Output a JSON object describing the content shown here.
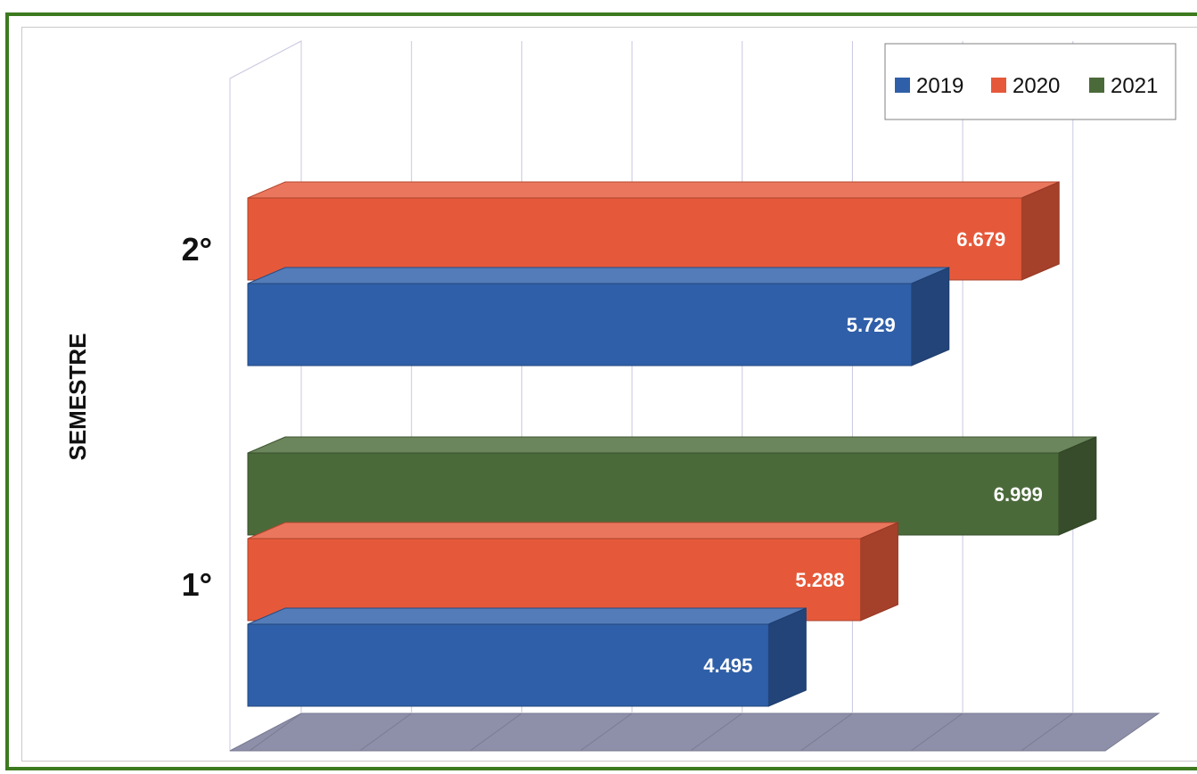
{
  "chart_data": {
    "type": "bar",
    "orientation": "horizontal",
    "style": "3d",
    "categories": [
      "1°",
      "2°"
    ],
    "ylabel": "SEMESTRE",
    "xlabel": "",
    "xlim": [
      0,
      7000
    ],
    "grid": true,
    "legend_position": "top-right",
    "series": [
      {
        "name": "2019",
        "color": "#2f5fa8",
        "values": [
          4495,
          5729
        ],
        "labels": [
          "4.495",
          "5.729"
        ]
      },
      {
        "name": "2020",
        "color": "#e5593a",
        "values": [
          5288,
          6679
        ],
        "labels": [
          "5.288",
          "6.679"
        ]
      },
      {
        "name": "2021",
        "color": "#4b6a3a",
        "values": [
          6999,
          null
        ],
        "labels": [
          "6.999",
          ""
        ]
      }
    ]
  }
}
